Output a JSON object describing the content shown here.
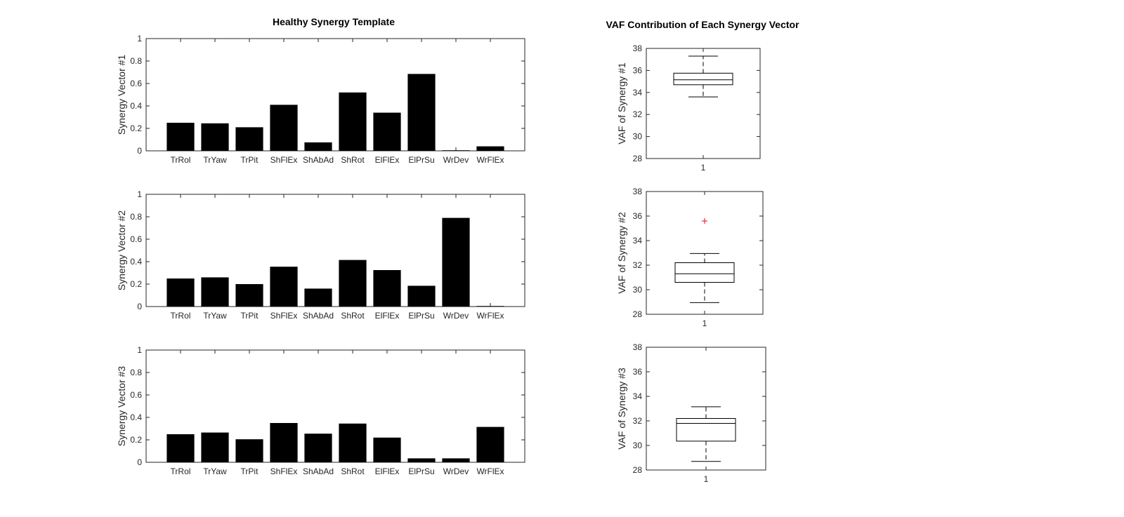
{
  "bar_panel_title": "Healthy Synergy Template",
  "box_panel_title": "VAF Contribution of Each Synergy Vector",
  "colors": {
    "bar": "#000000",
    "axis": "#262626",
    "outlier": "#ff0000"
  },
  "chart_data": [
    {
      "type": "bar",
      "categories": [
        "TrRol",
        "TrYaw",
        "TrPit",
        "ShFlEx",
        "ShAbAd",
        "ShRot",
        "ElFlEx",
        "ElPrSu",
        "WrDev",
        "WrFlEx"
      ],
      "values": [
        0.25,
        0.245,
        0.21,
        0.41,
        0.075,
        0.52,
        0.34,
        0.685,
        0.005,
        0.04
      ],
      "ylabel": "Synergy Vector #1",
      "ylim": [
        0,
        1
      ],
      "yticks": [
        "0",
        "0.2",
        "0.4",
        "0.6",
        "0.8",
        "1"
      ],
      "grid": false
    },
    {
      "type": "bar",
      "categories": [
        "TrRol",
        "TrYaw",
        "TrPit",
        "ShFlEx",
        "ShAbAd",
        "ShRot",
        "ElFlEx",
        "ElPrSu",
        "WrDev",
        "WrFlEx"
      ],
      "values": [
        0.25,
        0.26,
        0.2,
        0.355,
        0.16,
        0.415,
        0.325,
        0.185,
        0.79,
        0.005
      ],
      "ylabel": "Synergy Vector #2",
      "ylim": [
        0,
        1
      ],
      "yticks": [
        "0",
        "0.2",
        "0.4",
        "0.6",
        "0.8",
        "1"
      ],
      "grid": false
    },
    {
      "type": "bar",
      "categories": [
        "TrRol",
        "TrYaw",
        "TrPit",
        "ShFlEx",
        "ShAbAd",
        "ShRot",
        "ElFlEx",
        "ElPrSu",
        "WrDev",
        "WrFlEx"
      ],
      "values": [
        0.25,
        0.265,
        0.205,
        0.35,
        0.255,
        0.345,
        0.22,
        0.035,
        0.035,
        0.315
      ],
      "ylabel": "Synergy Vector #3",
      "ylim": [
        0,
        1
      ],
      "yticks": [
        "0",
        "0.2",
        "0.4",
        "0.6",
        "0.8",
        "1"
      ],
      "grid": false
    },
    {
      "type": "box",
      "categories": [
        "1"
      ],
      "whisker_low": 33.6,
      "q1": 34.7,
      "median": 35.15,
      "q3": 35.75,
      "whisker_high": 37.3,
      "outliers": [],
      "ylabel": "VAF of Synergy #1",
      "ylim": [
        28,
        38
      ],
      "yticks": [
        "28",
        "30",
        "32",
        "34",
        "36",
        "38"
      ]
    },
    {
      "type": "box",
      "categories": [
        "1"
      ],
      "whisker_low": 28.95,
      "q1": 30.6,
      "median": 31.3,
      "q3": 32.2,
      "whisker_high": 32.95,
      "outliers": [
        35.6
      ],
      "ylabel": "VAF of Synergy #2",
      "ylim": [
        28,
        38
      ],
      "yticks": [
        "28",
        "30",
        "32",
        "34",
        "36",
        "38"
      ]
    },
    {
      "type": "box",
      "categories": [
        "1"
      ],
      "whisker_low": 28.7,
      "q1": 30.35,
      "median": 31.8,
      "q3": 32.2,
      "whisker_high": 33.15,
      "outliers": [],
      "ylabel": "VAF of Synergy #3",
      "ylim": [
        28,
        38
      ],
      "yticks": [
        "28",
        "30",
        "32",
        "34",
        "36",
        "38"
      ]
    }
  ]
}
